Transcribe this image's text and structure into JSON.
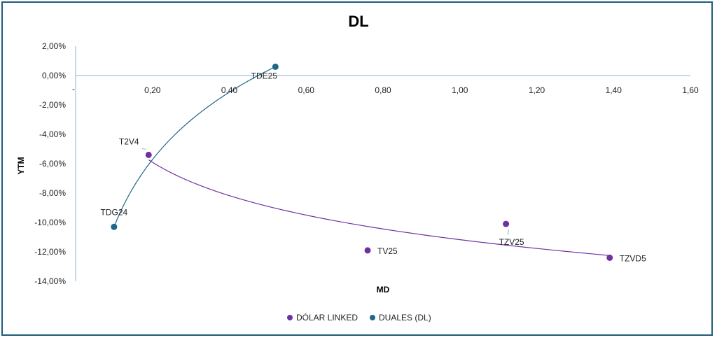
{
  "chart_data": {
    "type": "scatter",
    "title": "DL",
    "xlabel": "MD",
    "ylabel": "YTM",
    "xlim": [
      0,
      1.6
    ],
    "ylim": [
      -14,
      2
    ],
    "x_ticks": [
      "0,20",
      "0,40",
      "0,60",
      "0,80",
      "1,00",
      "1,20",
      "1,40",
      "1,60"
    ],
    "x_tick_values": [
      0.2,
      0.4,
      0.6,
      0.8,
      1.0,
      1.2,
      1.4,
      1.6
    ],
    "y_ticks": [
      "2,00%",
      "0,00%",
      "-2,00%",
      "-4,00%",
      "-6,00%",
      "-8,00%",
      "-10,00%",
      "-12,00%",
      "-14,00%"
    ],
    "y_tick_values": [
      2,
      0,
      -2,
      -4,
      -6,
      -8,
      -10,
      -12,
      -14
    ],
    "zero_tick_label": "-",
    "legend_position": "bottom",
    "series": [
      {
        "name": "DÓLAR LINKED",
        "color": "#7030a0",
        "trendline": "logarithmic",
        "points": [
          {
            "label": "T2V4",
            "x": 0.19,
            "y": -5.4
          },
          {
            "label": "TV25",
            "x": 0.76,
            "y": -11.9
          },
          {
            "label": "TZV25",
            "x": 1.12,
            "y": -10.1
          },
          {
            "label": "TZVD5",
            "x": 1.39,
            "y": -12.4
          }
        ]
      },
      {
        "name": "DUALES (DL)",
        "color": "#1f6688",
        "trendline": "logarithmic",
        "points": [
          {
            "label": "TDG24",
            "x": 0.1,
            "y": -10.3
          },
          {
            "label": "TDE25",
            "x": 0.52,
            "y": 0.6
          }
        ]
      }
    ]
  }
}
